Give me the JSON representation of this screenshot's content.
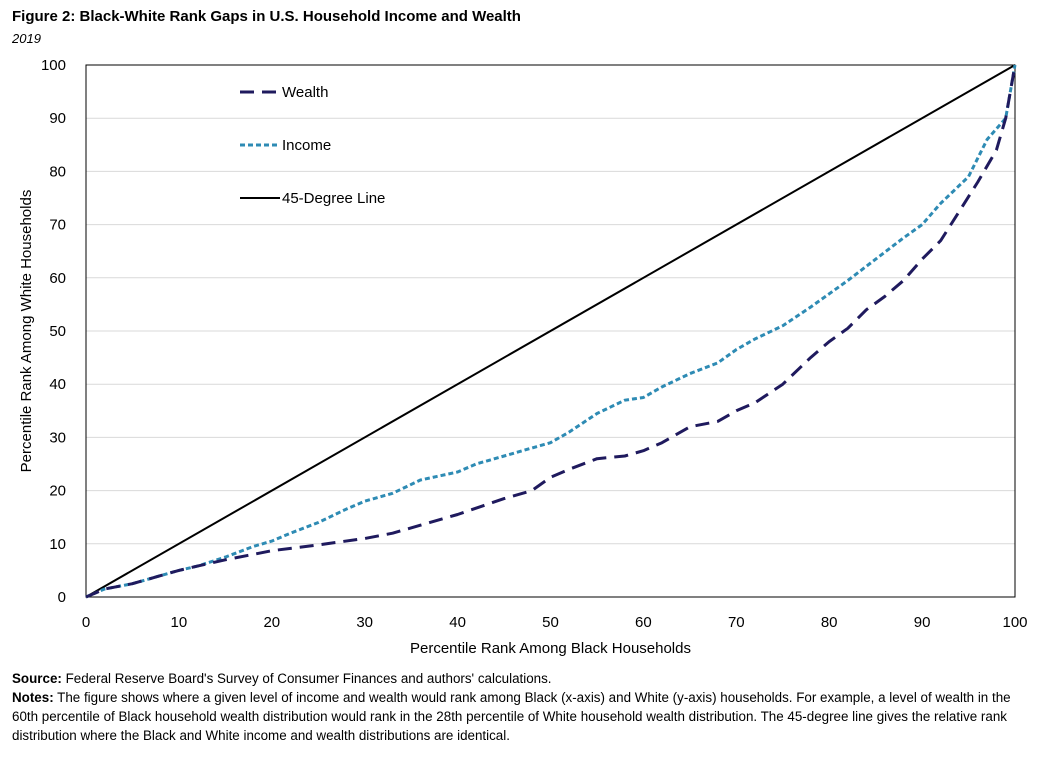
{
  "figure": {
    "title": "Figure 2: Black-White Rank Gaps in U.S. Household Income and Wealth",
    "subtitle": "2019"
  },
  "chart_data": {
    "type": "line",
    "xlabel": "Percentile Rank Among Black Households",
    "ylabel": "Percentile Rank Among White Households",
    "xlim": [
      0,
      100
    ],
    "ylim": [
      0,
      100
    ],
    "x_ticks": [
      0,
      10,
      20,
      30,
      40,
      50,
      60,
      70,
      80,
      90,
      100
    ],
    "y_ticks": [
      0,
      10,
      20,
      30,
      40,
      50,
      60,
      70,
      80,
      90,
      100
    ],
    "grid": "horizontal",
    "legend": "top-left",
    "series": [
      {
        "name": "Wealth",
        "color": "#1f1a5e",
        "dash": "long-dash",
        "x": [
          0,
          2,
          5,
          8,
          10,
          12,
          15,
          18,
          20,
          25,
          30,
          33,
          36,
          40,
          45,
          48,
          50,
          52,
          55,
          58,
          60,
          62,
          65,
          68,
          70,
          72,
          75,
          78,
          80,
          82,
          84,
          86,
          88,
          90,
          92,
          94,
          96,
          98,
          99,
          100
        ],
        "y": [
          0,
          1.5,
          2.5,
          4,
          5,
          5.8,
          7,
          8,
          8.7,
          9.8,
          11,
          12,
          13.5,
          15.5,
          18.5,
          20,
          22.5,
          24,
          26,
          26.5,
          27.5,
          29,
          32,
          33,
          35,
          36.5,
          40,
          45,
          48,
          50.5,
          54,
          56.5,
          59.5,
          63.5,
          67,
          72.5,
          78,
          84,
          90,
          100
        ]
      },
      {
        "name": "Income",
        "color": "#2e8bb4",
        "dash": "short-dash",
        "x": [
          0,
          2,
          5,
          8,
          10,
          12,
          15,
          18,
          20,
          22,
          25,
          28,
          30,
          33,
          36,
          40,
          42,
          45,
          48,
          50,
          52,
          55,
          58,
          60,
          62,
          65,
          68,
          70,
          72,
          75,
          78,
          80,
          82,
          85,
          88,
          90,
          92,
          95,
          97,
          99,
          100
        ],
        "y": [
          0,
          1.5,
          2.5,
          4,
          5,
          5.8,
          7.5,
          9.5,
          10.5,
          12,
          14,
          16.5,
          18,
          19.5,
          22,
          23.5,
          25,
          26.5,
          28,
          29,
          31,
          34.5,
          37,
          37.5,
          39.5,
          42,
          44,
          46.5,
          48.5,
          51,
          54.5,
          57,
          59.5,
          63.5,
          67.5,
          70,
          74,
          79,
          86,
          90,
          100
        ]
      },
      {
        "name": "45-Degree Line",
        "color": "#000000",
        "dash": "solid",
        "x": [
          0,
          100
        ],
        "y": [
          0,
          100
        ]
      }
    ]
  },
  "notes": {
    "source_label": "Source:",
    "source_text": "Federal Reserve Board's Survey of Consumer Finances and authors' calculations.",
    "notes_label": "Notes:",
    "notes_text": "The figure shows where a given level of income and wealth would rank among Black (x-axis) and White (y-axis) households. For example, a level of wealth in the 60th percentile of Black household wealth distribution would rank in the 28th percentile of White household wealth distribution. The 45-degree line gives the relative rank distribution where the Black and White income and wealth distributions are identical."
  }
}
